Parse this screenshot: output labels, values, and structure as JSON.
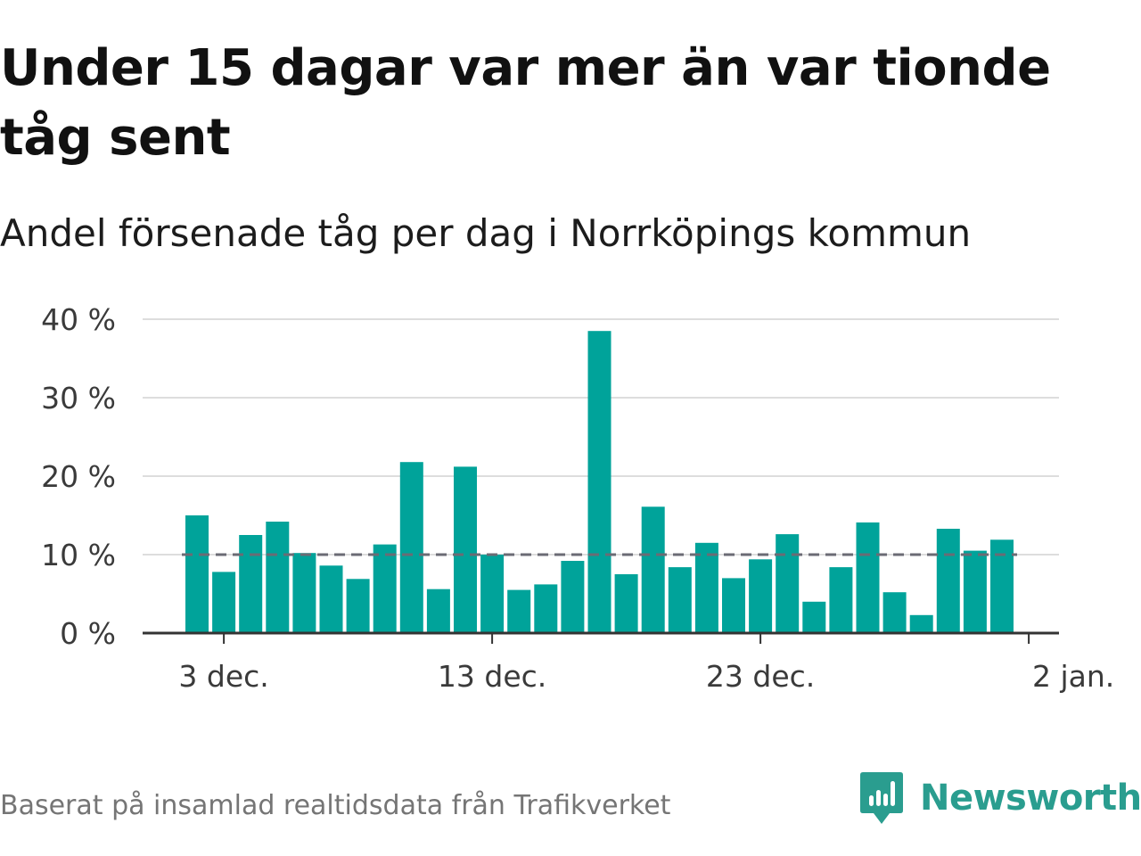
{
  "title": "Under 15 dagar var mer än var tionde tåg sent",
  "subtitle": "Andel försenade tåg per dag i Norrköpings kommun",
  "source": "Baserat på insamlad realtidsdata från Trafikverket",
  "brand": {
    "name": "Newsworthy",
    "icon": "newsworthy-logo-icon",
    "color": "#2a9d8f"
  },
  "colors": {
    "bar": "#00a39a",
    "grid": "#dddddd",
    "reference_line": "#6b6b74",
    "axis": "#333333"
  },
  "chart_data": {
    "type": "bar",
    "title": "Under 15 dagar var mer än var tionde tåg sent",
    "subtitle": "Andel försenade tåg per dag i Norrköpings kommun",
    "xlabel": "",
    "ylabel": "",
    "x_start_label": "2 dec.",
    "x": [
      "2 dec.",
      "3 dec.",
      "4 dec.",
      "5 dec.",
      "6 dec.",
      "7 dec.",
      "8 dec.",
      "9 dec.",
      "10 dec.",
      "11 dec.",
      "12 dec.",
      "13 dec.",
      "14 dec.",
      "15 dec.",
      "16 dec.",
      "17 dec.",
      "18 dec.",
      "19 dec.",
      "20 dec.",
      "21 dec.",
      "22 dec.",
      "23 dec.",
      "24 dec.",
      "25 dec.",
      "26 dec.",
      "27 dec.",
      "28 dec.",
      "29 dec.",
      "30 dec.",
      "31 dec.",
      "1 jan."
    ],
    "values": [
      15,
      7.8,
      12.5,
      14.2,
      10.2,
      8.6,
      6.9,
      11.3,
      21.8,
      5.6,
      21.2,
      10,
      5.5,
      6.2,
      9.2,
      38.5,
      7.5,
      16.1,
      8.4,
      11.5,
      7,
      9.4,
      12.6,
      4,
      8.4,
      14.1,
      5.2,
      2.3,
      13.3,
      10.5,
      11.9
    ],
    "x_ticks": [
      {
        "label": "3 dec.",
        "index": 1
      },
      {
        "label": "13 dec.",
        "index": 11
      },
      {
        "label": "23 dec.",
        "index": 21
      },
      {
        "label": "2 jan.",
        "index": 31
      }
    ],
    "y_ticks": [
      0,
      10,
      20,
      30,
      40
    ],
    "y_tick_labels": [
      "0 %",
      "10 %",
      "20 %",
      "30 %",
      "40 %"
    ],
    "ylim": [
      0,
      40
    ],
    "reference_line": {
      "value": 10,
      "style": "dashed"
    },
    "grid": true,
    "legend": "none"
  }
}
